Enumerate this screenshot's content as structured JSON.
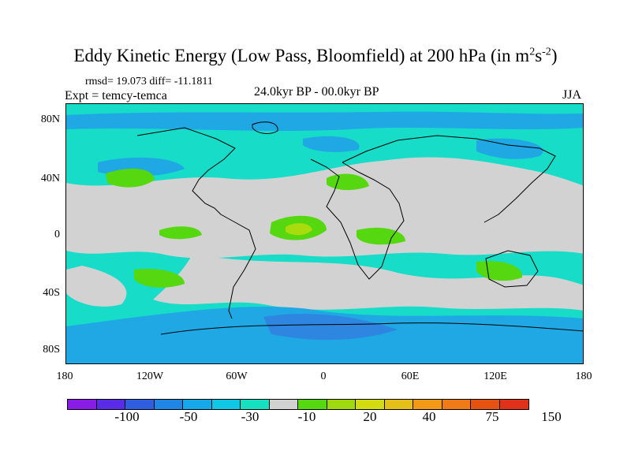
{
  "title": {
    "main": "Eddy Kinetic Energy (Low Pass, Bloomfield) at 200 hPa (in m",
    "sup1": "2",
    "mid": "s",
    "sup2": "-2",
    "end": ")"
  },
  "stats": "rmsd= 19.073 diff= -11.1811",
  "expt": "Expt = temcy-temca",
  "period": "24.0kyr BP - 00.0kyr BP",
  "season": "JJA",
  "y_ticks": [
    "80N",
    "40N",
    "0",
    "40S",
    "80S"
  ],
  "x_ticks": [
    "180",
    "120W",
    "60W",
    "0",
    "60E",
    "120E",
    "180"
  ],
  "colorbar": {
    "colors": [
      "#8a1ce8",
      "#5a2ce8",
      "#2f5fe0",
      "#1f86e6",
      "#16a9ea",
      "#10c7e6",
      "#17e0c0",
      "#d2d2d2",
      "#55d80f",
      "#9fd80e",
      "#d2dc10",
      "#e6c01a",
      "#f29a18",
      "#ef7a16",
      "#e65212",
      "#e0321a"
    ],
    "labels": [
      "-100",
      "-50",
      "-30",
      "-10",
      "20",
      "40",
      "75",
      "150"
    ]
  },
  "palette": {
    "ocean_base": "#17dcc8",
    "neutral": "#d2d2d2",
    "blue": "#1fa8e4",
    "darkblue": "#2f86e0",
    "green": "#55d80f",
    "yellow": "#a8dc0e"
  }
}
